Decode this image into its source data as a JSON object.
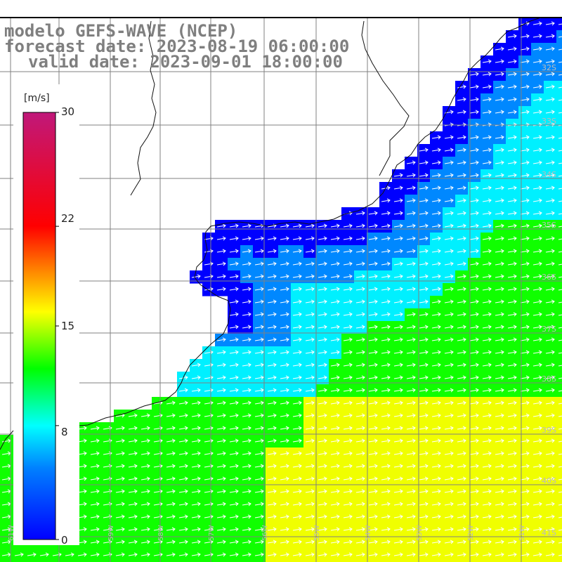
{
  "title": {
    "line1": "modelo GEFS-WAVE (NCEP)",
    "line2": "forecast date: 2023-08-19 06:00:00",
    "line3": "valid date: 2023-09-01 18:00:00"
  },
  "colorbar": {
    "unit": "[m/s]",
    "min": 0,
    "max": 30,
    "ticks": [
      {
        "value": 30,
        "label": "30"
      },
      {
        "value": 22,
        "label": "22"
      },
      {
        "value": 15,
        "label": "15"
      },
      {
        "value": 8,
        "label": "8"
      },
      {
        "value": 0,
        "label": "0"
      }
    ],
    "stops": [
      {
        "value": 0,
        "color": "#0000ff"
      },
      {
        "value": 5,
        "color": "#0080ff"
      },
      {
        "value": 8,
        "color": "#00ffff"
      },
      {
        "value": 12,
        "color": "#00ff00"
      },
      {
        "value": 16,
        "color": "#ffff00"
      },
      {
        "value": 19,
        "color": "#ff8000"
      },
      {
        "value": 22,
        "color": "#ff0000"
      },
      {
        "value": 30,
        "color": "#c0187a"
      }
    ]
  },
  "map": {
    "lon_range": [
      -61,
      -50.25
    ],
    "lat_range": [
      -41.25,
      -30.75
    ],
    "lon_labels": [
      "61W",
      "60W",
      "59W",
      "58W",
      "57W",
      "56W",
      "55W",
      "54W",
      "53W",
      "52W",
      "51W"
    ],
    "lat_labels": [
      "32S",
      "33S",
      "34S",
      "35S",
      "36S",
      "37S",
      "38S",
      "39S",
      "40S",
      "41S"
    ],
    "field_colors": {
      "coast": "#0000ff",
      "shelf": "#0088ff",
      "mid": "#00f0ff",
      "open": "#10ff00",
      "south": "#f0ff00"
    }
  }
}
